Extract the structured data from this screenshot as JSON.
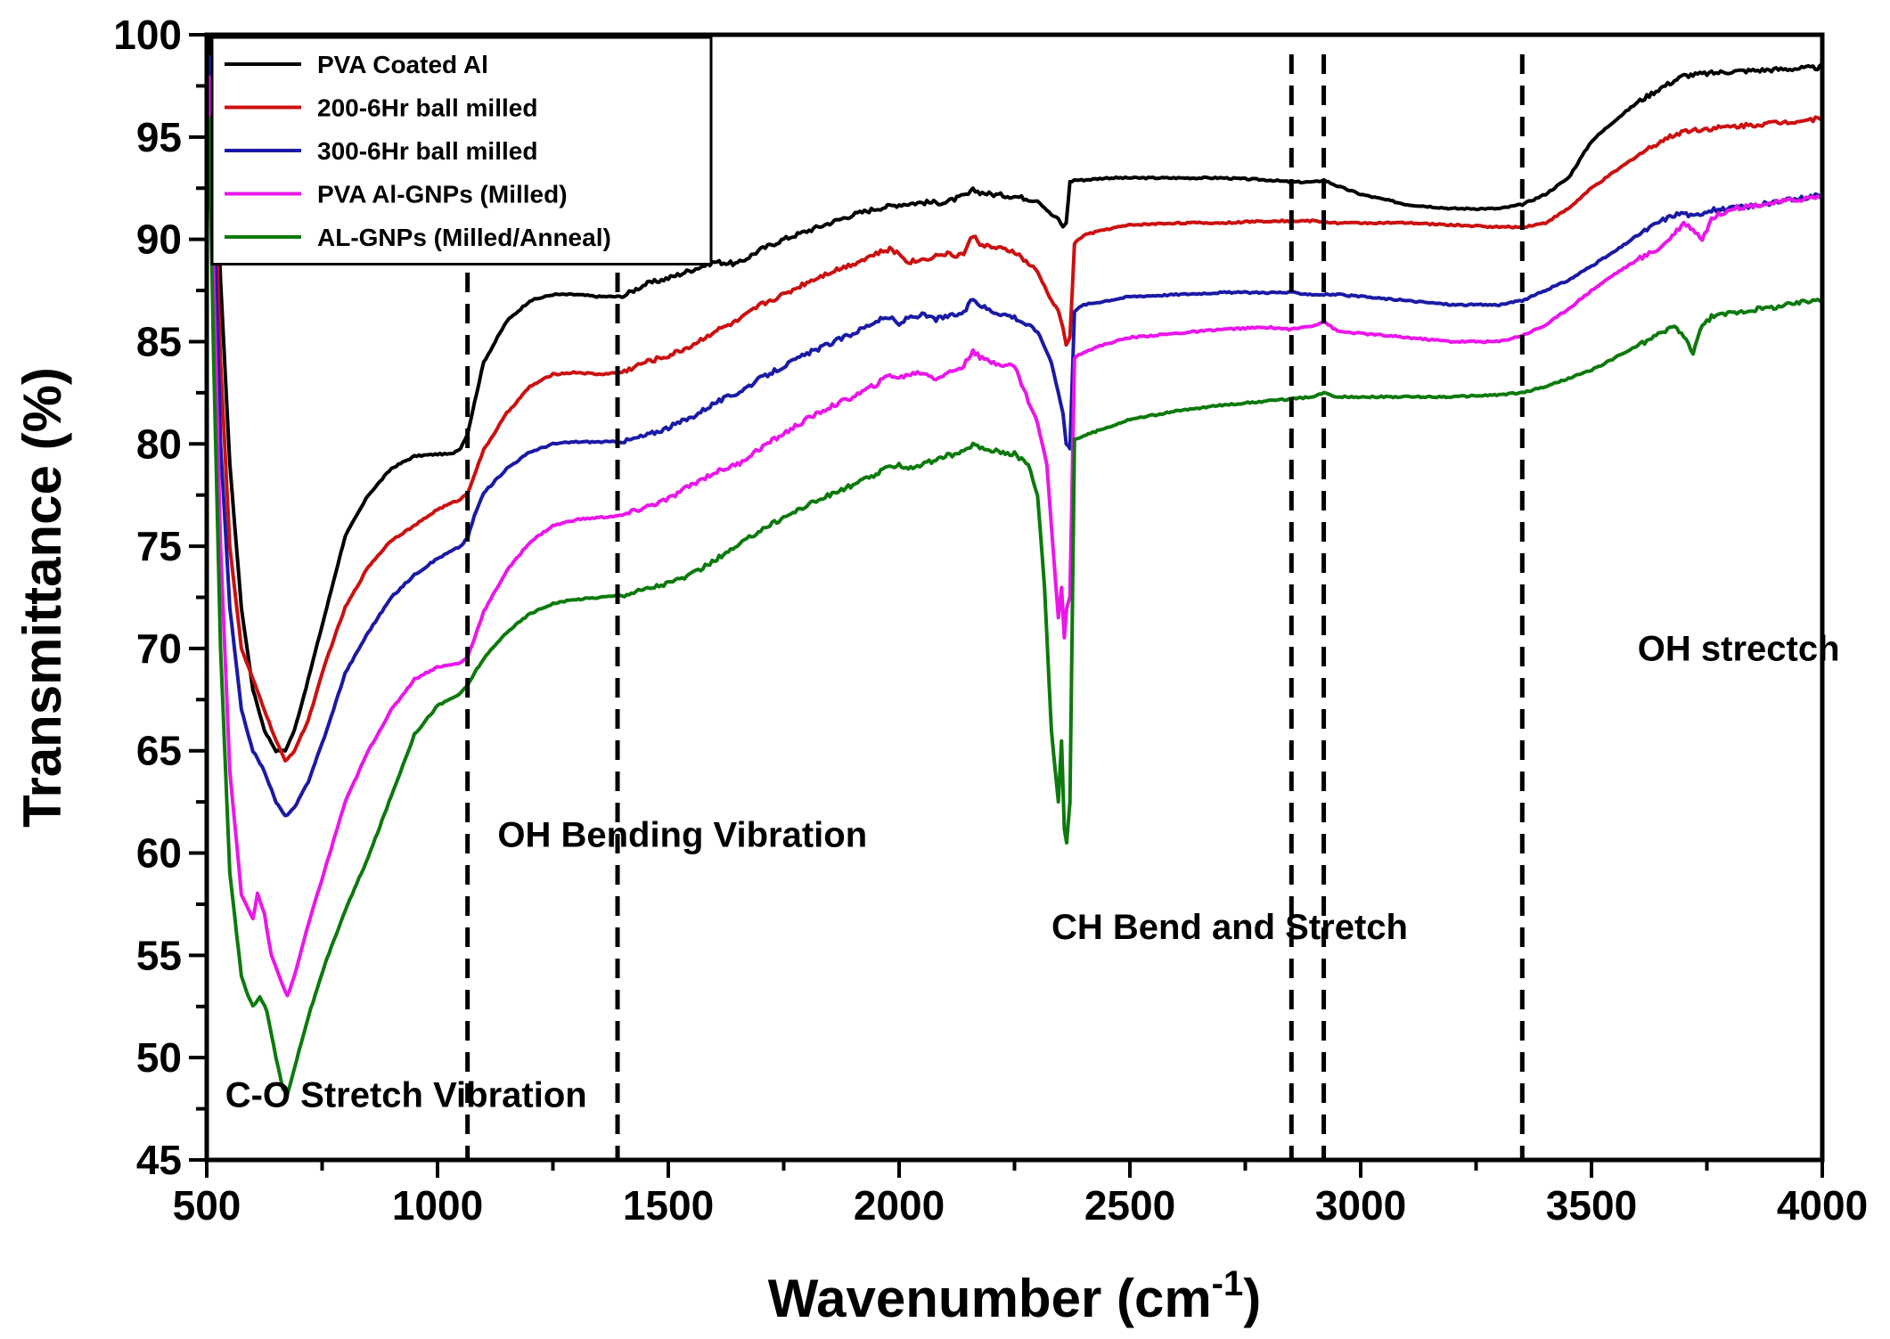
{
  "chart_data": {
    "type": "line",
    "title": "",
    "xlabel": "Wavenumber (cm",
    "xlabel_sup": "-1",
    "xlabel_close": ")",
    "ylabel": "Transmittance (%)",
    "xlim": [
      500,
      4000
    ],
    "ylim": [
      45,
      100
    ],
    "x_ticks": [
      500,
      1000,
      1500,
      2000,
      2500,
      3000,
      3500,
      4000
    ],
    "x_tick_labels": [
      "500",
      "1000",
      "1500",
      "2000",
      "2500",
      "3000",
      "3500",
      "4000"
    ],
    "y_ticks": [
      45,
      50,
      55,
      60,
      65,
      70,
      75,
      80,
      85,
      90,
      95,
      100
    ],
    "y_tick_labels": [
      "45",
      "50",
      "55",
      "60",
      "65",
      "70",
      "75",
      "80",
      "85",
      "90",
      "95",
      "100"
    ],
    "grid": false,
    "legend_position": "top-left",
    "series": [
      {
        "name": "PVA Coated Al",
        "color": "#000000",
        "x": [
          505,
          515,
          530,
          550,
          575,
          600,
          625,
          650,
          670,
          690,
          720,
          760,
          800,
          850,
          900,
          950,
          1000,
          1030,
          1050,
          1065,
          1080,
          1100,
          1150,
          1200,
          1250,
          1300,
          1350,
          1400,
          1450,
          1500,
          1550,
          1600,
          1650,
          1700,
          1750,
          1800,
          1850,
          1900,
          1950,
          2000,
          2050,
          2100,
          2150,
          2160,
          2175,
          2200,
          2250,
          2300,
          2330,
          2345,
          2355,
          2362,
          2370,
          2380,
          2400,
          2450,
          2500,
          2600,
          2700,
          2800,
          2850,
          2900,
          2920,
          2950,
          3000,
          3100,
          3200,
          3300,
          3350,
          3400,
          3450,
          3500,
          3550,
          3600,
          3650,
          3700,
          3750,
          3800,
          3900,
          4000
        ],
        "y": [
          100,
          96,
          88,
          79,
          72,
          68,
          66,
          65,
          65,
          66,
          68.5,
          72,
          75.5,
          77.5,
          78.8,
          79.4,
          79.5,
          79.5,
          79.8,
          80.5,
          82,
          84,
          86,
          87,
          87.3,
          87.3,
          87.2,
          87.2,
          87.8,
          88.1,
          88.5,
          88.9,
          88.8,
          89.5,
          90,
          90.4,
          90.8,
          91.2,
          91.5,
          91.7,
          91.8,
          91.8,
          92.2,
          92.4,
          92.3,
          92.2,
          92.1,
          91.9,
          91.2,
          91,
          90.6,
          90.8,
          92.8,
          92.9,
          92.9,
          93,
          93,
          93,
          93,
          92.9,
          92.8,
          92.8,
          92.9,
          92.6,
          92.2,
          91.7,
          91.5,
          91.5,
          91.7,
          92.2,
          93,
          94.8,
          95.8,
          96.7,
          97.4,
          98,
          98.1,
          98.2,
          98.3,
          98.4
        ]
      },
      {
        "name": "200-6Hr ball milled",
        "color": "#cc1010",
        "x": [
          505,
          515,
          530,
          550,
          575,
          600,
          625,
          650,
          670,
          690,
          720,
          760,
          800,
          850,
          900,
          950,
          1000,
          1050,
          1065,
          1080,
          1100,
          1150,
          1200,
          1250,
          1300,
          1350,
          1400,
          1450,
          1500,
          1550,
          1600,
          1650,
          1700,
          1750,
          1800,
          1850,
          1900,
          1950,
          1980,
          2000,
          2020,
          2050,
          2080,
          2100,
          2120,
          2140,
          2160,
          2175,
          2200,
          2250,
          2300,
          2330,
          2345,
          2355,
          2362,
          2370,
          2380,
          2400,
          2450,
          2500,
          2600,
          2700,
          2800,
          2850,
          2900,
          2950,
          3000,
          3100,
          3200,
          3300,
          3350,
          3400,
          3450,
          3500,
          3550,
          3600,
          3650,
          3700,
          3750,
          3800,
          3900,
          4000
        ],
        "y": [
          99,
          94,
          84,
          75,
          70,
          68.5,
          67,
          65.5,
          64.5,
          65,
          66.5,
          69.5,
          72,
          74,
          75.3,
          76,
          76.8,
          77.3,
          77.6,
          78.5,
          79.7,
          81.5,
          82.8,
          83.4,
          83.5,
          83.4,
          83.5,
          84,
          84.3,
          84.8,
          85.5,
          86,
          86.8,
          87.3,
          87.9,
          88.4,
          88.8,
          89.3,
          89.5,
          89.3,
          88.9,
          89,
          89.2,
          89.3,
          89.2,
          89.3,
          90.2,
          89.8,
          89.6,
          89.4,
          88.4,
          87,
          86.5,
          85.7,
          84.8,
          85.2,
          89.8,
          90.2,
          90.5,
          90.7,
          90.8,
          90.8,
          90.9,
          90.9,
          90.9,
          90.8,
          90.8,
          90.8,
          90.7,
          90.6,
          90.6,
          90.8,
          91.5,
          92.5,
          93.3,
          94.1,
          94.8,
          95.3,
          95.4,
          95.5,
          95.7,
          95.9
        ]
      },
      {
        "name": "300-6Hr ball milled",
        "color": "#1a1aa6",
        "x": [
          505,
          515,
          530,
          550,
          575,
          600,
          625,
          650,
          670,
          690,
          720,
          760,
          800,
          850,
          900,
          950,
          1000,
          1050,
          1065,
          1080,
          1100,
          1150,
          1200,
          1250,
          1300,
          1350,
          1400,
          1450,
          1500,
          1550,
          1600,
          1650,
          1700,
          1750,
          1800,
          1850,
          1900,
          1950,
          1980,
          2000,
          2020,
          2050,
          2080,
          2100,
          2120,
          2140,
          2160,
          2175,
          2200,
          2250,
          2300,
          2330,
          2345,
          2355,
          2362,
          2370,
          2380,
          2400,
          2450,
          2500,
          2600,
          2700,
          2800,
          2850,
          2900,
          2950,
          3000,
          3100,
          3200,
          3300,
          3350,
          3400,
          3450,
          3500,
          3550,
          3600,
          3650,
          3680,
          3700,
          3720,
          3750,
          3800,
          3900,
          4000
        ],
        "y": [
          99,
          92,
          80,
          72,
          67,
          65,
          64,
          62.5,
          61.8,
          62.2,
          63.5,
          66,
          68.8,
          70.8,
          72.5,
          73.6,
          74.4,
          75,
          75.4,
          76.5,
          77.6,
          78.8,
          79.6,
          80,
          80.1,
          80.1,
          80.1,
          80.4,
          80.8,
          81.3,
          82,
          82.5,
          83.2,
          83.8,
          84.4,
          84.9,
          85.4,
          86,
          86.2,
          85.8,
          86.2,
          86.3,
          86.1,
          86.2,
          86.3,
          86.4,
          87.1,
          86.8,
          86.5,
          86.2,
          85.5,
          84,
          82.5,
          81.5,
          80,
          79.8,
          86.5,
          86.8,
          87,
          87.2,
          87.3,
          87.4,
          87.4,
          87.4,
          87.3,
          87.3,
          87.2,
          87,
          86.8,
          86.8,
          87,
          87.5,
          88,
          88.7,
          89.4,
          90.2,
          90.9,
          91.2,
          91.3,
          91.1,
          91.4,
          91.5,
          91.8,
          92.2
        ]
      },
      {
        "name": "PVA Al-GNPs (Milled)",
        "color": "#ea16ea",
        "x": [
          505,
          515,
          530,
          550,
          575,
          600,
          610,
          625,
          640,
          660,
          675,
          690,
          720,
          760,
          800,
          850,
          900,
          950,
          1000,
          1030,
          1050,
          1065,
          1080,
          1100,
          1150,
          1200,
          1250,
          1300,
          1350,
          1400,
          1450,
          1500,
          1550,
          1600,
          1650,
          1700,
          1750,
          1800,
          1850,
          1900,
          1950,
          1980,
          2000,
          2020,
          2050,
          2080,
          2100,
          2120,
          2140,
          2160,
          2175,
          2200,
          2250,
          2300,
          2320,
          2335,
          2345,
          2352,
          2358,
          2363,
          2370,
          2380,
          2400,
          2450,
          2500,
          2600,
          2700,
          2800,
          2850,
          2900,
          2920,
          2950,
          3000,
          3100,
          3200,
          3300,
          3350,
          3400,
          3450,
          3500,
          3550,
          3600,
          3650,
          3680,
          3700,
          3720,
          3740,
          3760,
          3800,
          3900,
          4000
        ],
        "y": [
          98,
          88,
          75,
          64,
          58,
          56.8,
          58,
          57,
          55,
          53.8,
          53,
          54,
          56.5,
          59.5,
          62.5,
          65,
          67,
          68.5,
          69.1,
          69.2,
          69.3,
          69.6,
          70.5,
          71.8,
          73.8,
          75.2,
          76,
          76.3,
          76.4,
          76.5,
          76.9,
          77.3,
          78,
          78.6,
          79,
          79.8,
          80.5,
          81.2,
          81.8,
          82.3,
          82.9,
          83.4,
          83.2,
          83.4,
          83.5,
          83.2,
          83.4,
          83.6,
          83.8,
          84.6,
          84.2,
          84,
          83.8,
          81,
          79,
          74.5,
          71.5,
          73,
          70.5,
          72,
          72.5,
          84.2,
          84.5,
          84.9,
          85.2,
          85.4,
          85.6,
          85.7,
          85.6,
          85.8,
          86,
          85.5,
          85.4,
          85.2,
          85,
          85,
          85.3,
          85.8,
          86.6,
          87.5,
          88.3,
          89,
          89.6,
          90.3,
          90.8,
          90.5,
          90,
          91,
          91.5,
          91.8,
          92.1
        ]
      },
      {
        "name": "AL-GNPs (Milled/Anneal)",
        "color": "#0c7a0c",
        "x": [
          505,
          515,
          530,
          550,
          575,
          590,
          600,
          615,
          630,
          650,
          665,
          675,
          690,
          720,
          760,
          800,
          850,
          900,
          950,
          1000,
          1050,
          1065,
          1080,
          1100,
          1150,
          1200,
          1250,
          1300,
          1350,
          1400,
          1450,
          1500,
          1550,
          1600,
          1650,
          1700,
          1750,
          1800,
          1850,
          1900,
          1950,
          1980,
          2000,
          2020,
          2050,
          2080,
          2100,
          2120,
          2140,
          2160,
          2175,
          2200,
          2250,
          2280,
          2300,
          2315,
          2330,
          2345,
          2352,
          2358,
          2363,
          2370,
          2380,
          2400,
          2450,
          2500,
          2600,
          2700,
          2800,
          2850,
          2900,
          2920,
          2950,
          3000,
          3100,
          3200,
          3300,
          3350,
          3400,
          3450,
          3500,
          3550,
          3600,
          3650,
          3680,
          3700,
          3720,
          3740,
          3760,
          3800,
          3900,
          4000
        ],
        "y": [
          96,
          84,
          70,
          59,
          54,
          53,
          52.5,
          53,
          52.3,
          50,
          48.5,
          48.2,
          49.5,
          52,
          54.8,
          57.2,
          59.8,
          62.8,
          65.8,
          67.2,
          67.8,
          68.2,
          68.8,
          69.5,
          70.8,
          71.7,
          72.2,
          72.4,
          72.5,
          72.6,
          72.9,
          73.2,
          73.6,
          74.3,
          75,
          75.8,
          76.4,
          77,
          77.5,
          78,
          78.5,
          78.9,
          79,
          78.8,
          79,
          79.2,
          79.4,
          79.5,
          79.6,
          80,
          79.8,
          79.7,
          79.5,
          79,
          77.5,
          73,
          66,
          62.5,
          65.5,
          61.2,
          60.5,
          62.5,
          80.2,
          80.4,
          80.8,
          81.2,
          81.6,
          81.9,
          82.1,
          82.2,
          82.3,
          82.5,
          82.3,
          82.3,
          82.3,
          82.3,
          82.4,
          82.5,
          82.8,
          83.2,
          83.6,
          84.2,
          84.8,
          85.4,
          85.8,
          85.2,
          84.5,
          85.8,
          86.2,
          86.4,
          86.7,
          87.1
        ]
      }
    ],
    "vlines": [
      1065,
      1390,
      2850,
      2920,
      3350
    ],
    "annotations": [
      {
        "text": "C-O Stretch Vibration",
        "x": 540,
        "y": 47.6
      },
      {
        "text": "OH Bending Vibration",
        "x": 1130,
        "y": 60.3
      },
      {
        "text": "CH Bend and Stretch",
        "x": 2330,
        "y": 55.8
      },
      {
        "text": "OH strectch",
        "x": 3600,
        "y": 69.4
      }
    ]
  }
}
